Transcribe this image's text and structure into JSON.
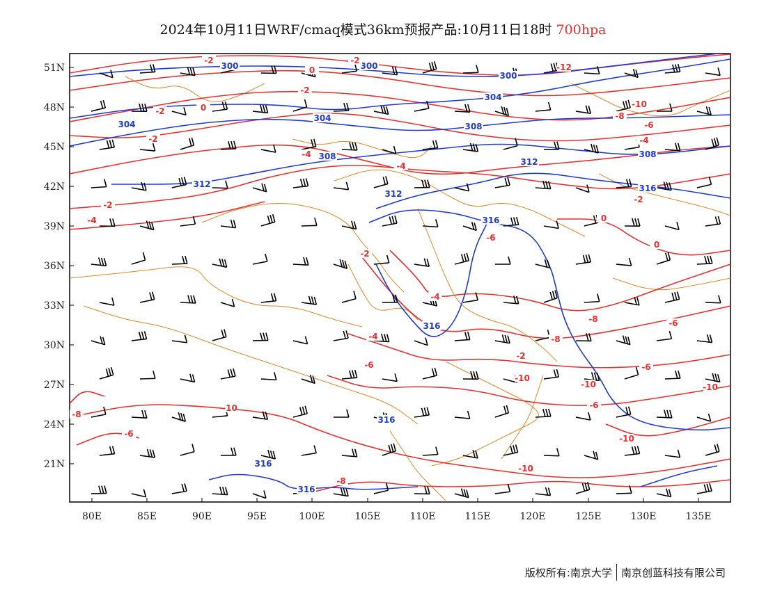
{
  "header": {
    "title": "2024年10月11日WRF/cmaq模式36km预报产品:10月11日18时",
    "level": "700hpa"
  },
  "colors": {
    "temperature": "#e8302f",
    "height": "#1f3bd6",
    "boundary": "#e0892a",
    "wind": "#000000"
  },
  "axes": {
    "lat_labels": [
      "51N",
      "48N",
      "45N",
      "42N",
      "39N",
      "36N",
      "33N",
      "30N",
      "27N",
      "24N",
      "21N"
    ],
    "lon_labels": [
      "80E",
      "85E",
      "90E",
      "95E",
      "100E",
      "105E",
      "110E",
      "115E",
      "120E",
      "125E",
      "130E",
      "135E"
    ]
  },
  "contour_labels": {
    "height": [
      "300",
      "300",
      "300",
      "304",
      "304",
      "304",
      "308",
      "308",
      "308",
      "312",
      "312",
      "312",
      "316",
      "316",
      "316",
      "316",
      "316",
      "316"
    ],
    "temperature": [
      "-2",
      "-2",
      "0",
      "-2",
      "-12",
      "0",
      "-2",
      "-2",
      "-4",
      "-4",
      "-10",
      "-8",
      "-6",
      "-4",
      "-2",
      "0",
      "0",
      "-2",
      "-4",
      "-2",
      "-4",
      "-6",
      "-8",
      "-6",
      "-8",
      "-4",
      "-6",
      "-2",
      "-6",
      "-10",
      "-6",
      "-8",
      "-10",
      "-6",
      "-8",
      "-10",
      "-10",
      "-10",
      "-10"
    ]
  },
  "footer": {
    "copyright": "版权所有:南京大学",
    "company": "南京创蓝科技有限公司"
  }
}
